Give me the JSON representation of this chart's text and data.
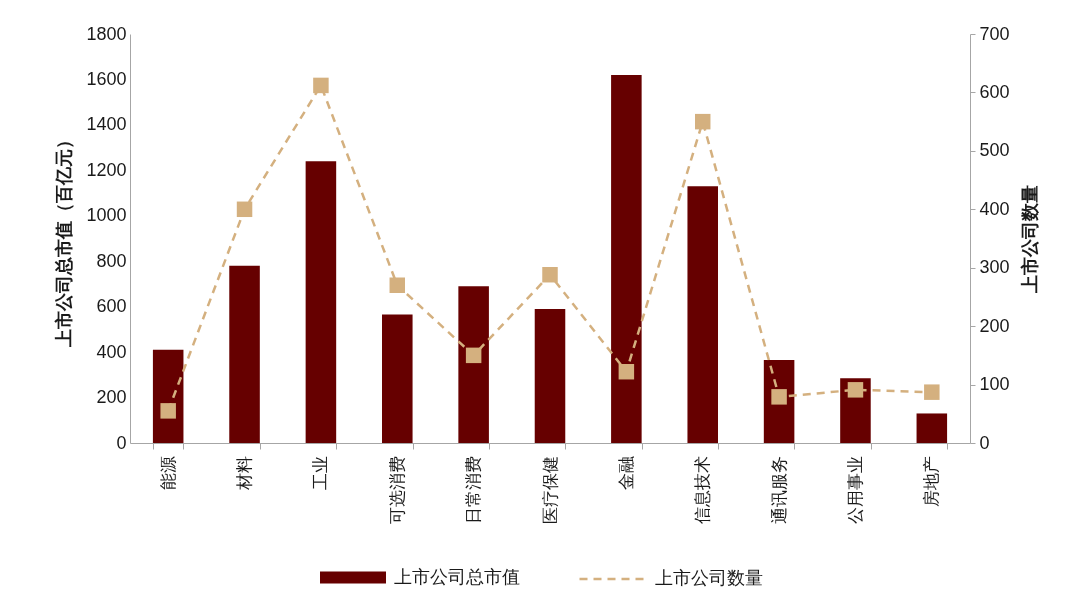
{
  "chart_data": {
    "type": "bar",
    "categories": [
      "能源",
      "材料",
      "工业",
      "可选消费",
      "日常消费",
      "医疗保健",
      "金融",
      "信息技术",
      "通讯服务",
      "公用事业",
      "房地产"
    ],
    "series": [
      {
        "name": "上市公司总市值",
        "color": "#660000",
        "values": [
          410,
          780,
          1240,
          565,
          690,
          590,
          1620,
          1130,
          365,
          285,
          130
        ]
      },
      {
        "name": "上市公司数量",
        "type": "line",
        "axis": "y2",
        "color": "#d4b07f",
        "values": [
          55,
          400,
          612,
          270,
          150,
          288,
          122,
          550,
          79,
          91,
          87
        ]
      }
    ],
    "ylabel": "上市公司总市值（百亿元）",
    "y2label": "上市公司数量",
    "ylim": [
      0,
      1800
    ],
    "yticks": [
      0,
      200,
      400,
      600,
      800,
      1000,
      1200,
      1400,
      1600,
      1800
    ],
    "y2lim": [
      0,
      700
    ],
    "y2ticks": [
      0,
      100,
      200,
      300,
      400,
      500,
      600,
      700
    ],
    "marker": "square",
    "line_style": "dashed",
    "legend": "bottom"
  }
}
